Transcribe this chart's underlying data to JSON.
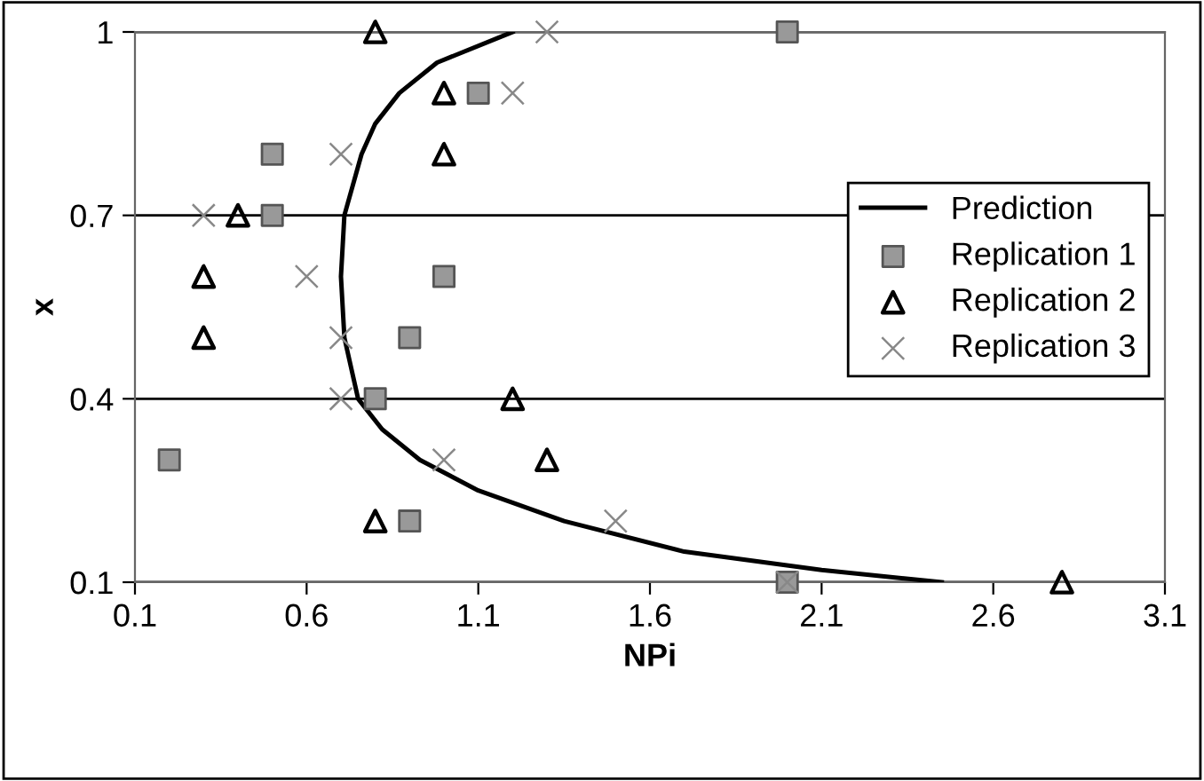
{
  "chart_data": {
    "type": "scatter",
    "xlabel": "NPi",
    "ylabel": "x",
    "xlim": [
      0.1,
      3.1
    ],
    "ylim": [
      0.1,
      1
    ],
    "xticks": [
      0.1,
      0.6,
      1.1,
      1.6,
      2.1,
      2.6,
      3.1
    ],
    "yticks": [
      0.1,
      0.4,
      0.7,
      1
    ],
    "grid": "y",
    "legend": "right",
    "series": [
      {
        "name": "Prediction",
        "type": "line",
        "color": "#000000",
        "marker": "none",
        "x": [
          2.45,
          2.1,
          1.7,
          1.35,
          1.1,
          0.93,
          0.82,
          0.75,
          0.71,
          0.7,
          0.71,
          0.76,
          0.8,
          0.87,
          0.98,
          1.2
        ],
        "values": [
          0.1,
          0.12,
          0.15,
          0.2,
          0.25,
          0.3,
          0.35,
          0.4,
          0.5,
          0.6,
          0.7,
          0.8,
          0.85,
          0.9,
          0.95,
          1
        ]
      },
      {
        "name": "Replication 1",
        "color": "#999999",
        "marker": "square",
        "x": [
          0.2,
          0.5,
          0.5,
          1.0,
          0.9,
          0.8,
          0.9,
          1.1,
          2.0,
          2.0
        ],
        "values": [
          0.3,
          0.8,
          0.7,
          0.6,
          0.5,
          0.4,
          0.2,
          0.9,
          1,
          0.1
        ]
      },
      {
        "name": "Replication 2",
        "color": "#000000",
        "marker": "triangle",
        "x": [
          0.8,
          1.0,
          1.0,
          0.4,
          0.3,
          0.3,
          1.2,
          1.3,
          0.8,
          2.8
        ],
        "values": [
          1,
          0.9,
          0.8,
          0.7,
          0.6,
          0.5,
          0.4,
          0.3,
          0.2,
          0.1
        ]
      },
      {
        "name": "Replication 3",
        "color": "#888888",
        "marker": "cross",
        "x": [
          1.3,
          1.2,
          0.7,
          0.3,
          0.6,
          0.7,
          0.7,
          1.0,
          1.5,
          2.0
        ],
        "values": [
          1,
          0.9,
          0.8,
          0.7,
          0.6,
          0.5,
          0.4,
          0.3,
          0.2,
          0.1
        ]
      }
    ]
  }
}
